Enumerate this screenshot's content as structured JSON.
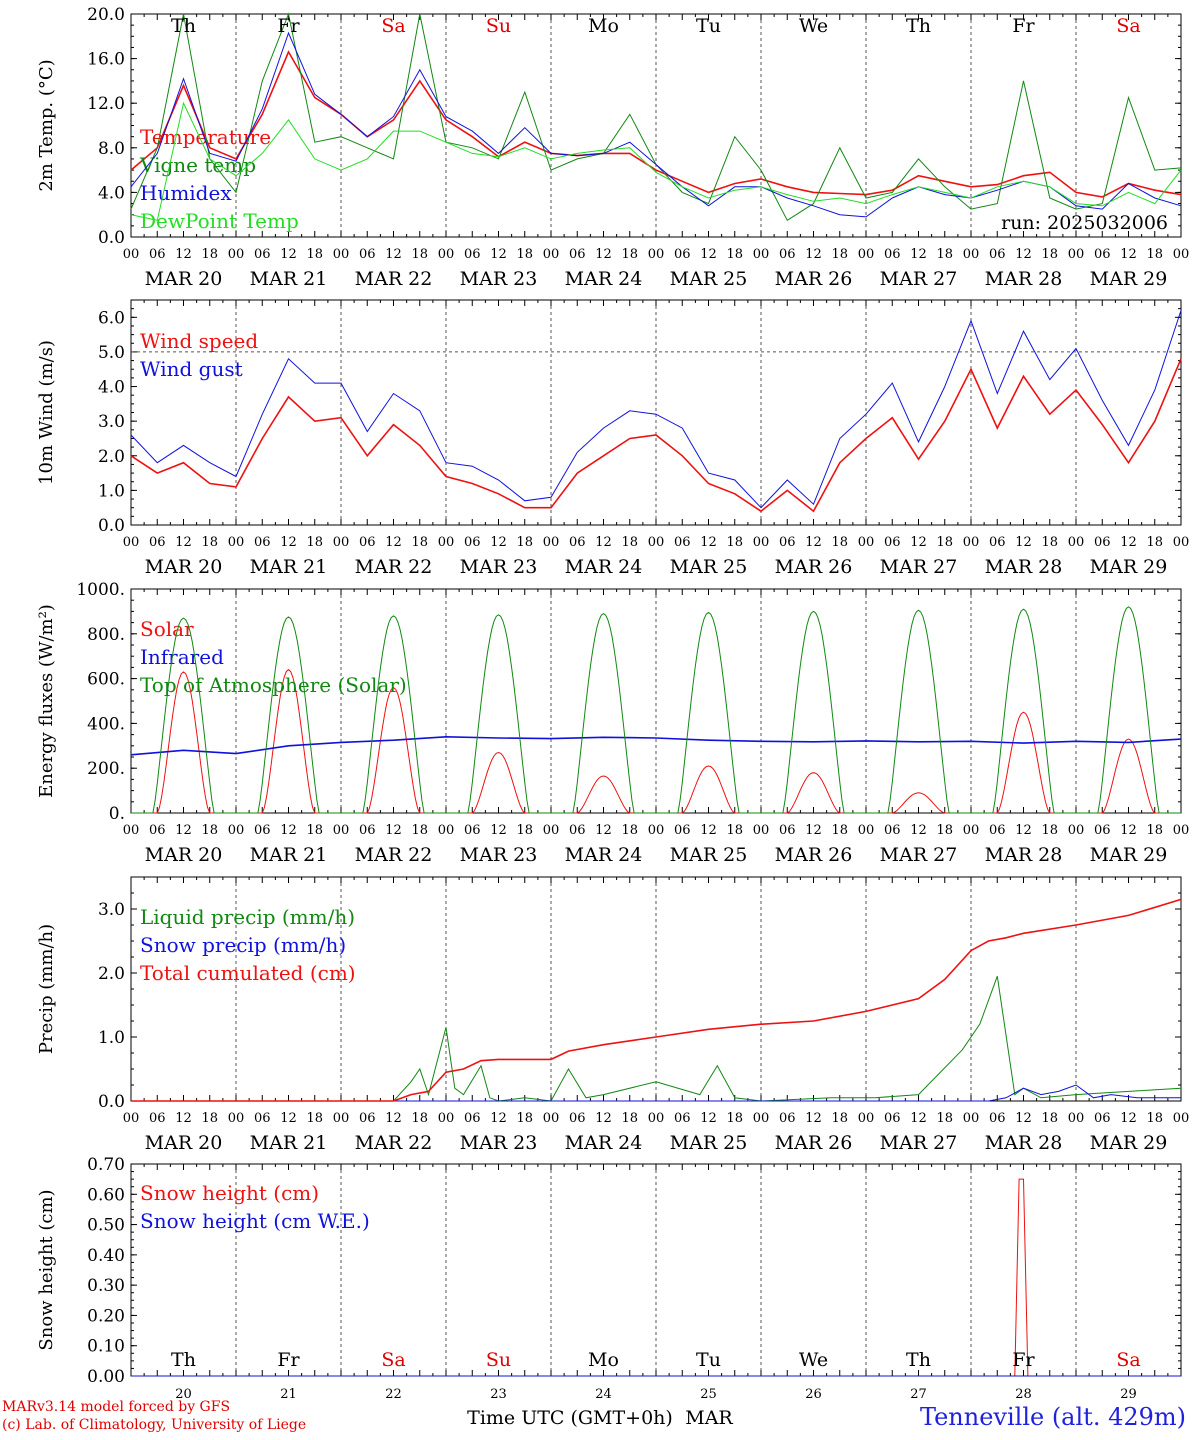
{
  "site": "Tenneville (alt. 429m)",
  "run": "run: 2025032006",
  "credits": [
    "MARv3.14 model forced by GFS",
    "(c) Lab. of Climatology, University of Liege"
  ],
  "xaxis": {
    "title": "Time UTC (GMT+0h)",
    "month": "MAR",
    "hour_ticks": [
      "00",
      "06",
      "12",
      "18"
    ],
    "dates": [
      "MAR 20",
      "MAR 21",
      "MAR 22",
      "MAR 23",
      "MAR 24",
      "MAR 25",
      "MAR 26",
      "MAR 27",
      "MAR 28",
      "MAR 29"
    ],
    "day_numbers": [
      "20",
      "21",
      "22",
      "23",
      "24",
      "25",
      "26",
      "27",
      "28",
      "29"
    ],
    "weekdays": [
      "Th",
      "Fr",
      "Sa",
      "Su",
      "Mo",
      "Tu",
      "We",
      "Th",
      "Fr",
      "Sa"
    ],
    "weekday_colors": [
      "#000000",
      "#000000",
      "#e00000",
      "#e00000",
      "#000000",
      "#000000",
      "#000000",
      "#000000",
      "#000000",
      "#e00000"
    ]
  },
  "colors": {
    "red": "#ee1111",
    "blue": "#1111dd",
    "green": "#118811",
    "lightgreen": "#22dd22",
    "grid": "#555555"
  },
  "chart_data": [
    {
      "type": "line",
      "ylabel": "2m Temp. (°C)",
      "ylim": [
        0,
        20
      ],
      "yticks": [
        "0.0",
        "4.0",
        "8.0",
        "12.0",
        "16.0",
        "20.0"
      ],
      "series": [
        {
          "name": "Temperature",
          "color": "#ee1111",
          "x": [
            0,
            6,
            12,
            18,
            24,
            30,
            36,
            42,
            48,
            54,
            60,
            66,
            72,
            78,
            84,
            90,
            96,
            102,
            108,
            114,
            120,
            126,
            132,
            138,
            144,
            150,
            156,
            162,
            168,
            174,
            180,
            186,
            192,
            198,
            204,
            210,
            216,
            222,
            228,
            234,
            240
          ],
          "y": [
            6.0,
            8.0,
            13.6,
            8.0,
            7.0,
            11.0,
            16.6,
            12.5,
            11.0,
            9.0,
            10.5,
            14.0,
            10.5,
            9.0,
            7.2,
            8.5,
            7.5,
            7.3,
            7.5,
            7.5,
            6.0,
            5.0,
            4.0,
            4.8,
            5.2,
            4.5,
            4.0,
            3.9,
            3.8,
            4.2,
            5.5,
            5.0,
            4.5,
            4.7,
            5.5,
            5.8,
            4.0,
            3.6,
            4.8,
            4.2,
            3.8
          ]
        },
        {
          "name": "Vigne temp",
          "color": "#118811",
          "x": [
            0,
            6,
            12,
            18,
            24,
            30,
            36,
            42,
            48,
            54,
            60,
            66,
            72,
            78,
            84,
            90,
            96,
            102,
            108,
            114,
            120,
            126,
            132,
            138,
            144,
            150,
            156,
            162,
            168,
            174,
            180,
            186,
            192,
            198,
            204,
            210,
            216,
            222,
            228,
            234,
            240
          ],
          "y": [
            2.5,
            8.0,
            20.0,
            7.0,
            4.0,
            14.0,
            20.0,
            8.5,
            9.0,
            8.0,
            7.0,
            20.0,
            8.5,
            8.0,
            7.0,
            13.0,
            6.0,
            7.0,
            7.5,
            11.0,
            6.5,
            4.0,
            3.0,
            9.0,
            6.0,
            1.5,
            3.0,
            8.0,
            3.5,
            4.0,
            7.0,
            4.5,
            2.5,
            3.0,
            14.0,
            3.5,
            2.5,
            3.0,
            12.5,
            6.0,
            6.2
          ]
        },
        {
          "name": "Humidex",
          "color": "#1111dd",
          "x": [
            0,
            6,
            12,
            18,
            24,
            30,
            36,
            42,
            48,
            54,
            60,
            66,
            72,
            78,
            84,
            90,
            96,
            102,
            108,
            114,
            120,
            126,
            132,
            138,
            144,
            150,
            156,
            162,
            168,
            174,
            180,
            186,
            192,
            198,
            204,
            210,
            216,
            222,
            228,
            234,
            240
          ],
          "y": [
            4.5,
            7.5,
            14.2,
            7.5,
            6.8,
            11.5,
            18.3,
            12.8,
            11.0,
            9.0,
            10.8,
            15.0,
            10.8,
            9.5,
            7.5,
            9.8,
            7.5,
            7.3,
            7.5,
            8.5,
            6.5,
            4.5,
            2.8,
            4.5,
            4.5,
            3.5,
            2.8,
            2.0,
            1.8,
            3.5,
            4.5,
            3.8,
            3.5,
            4.2,
            5.0,
            4.5,
            2.8,
            2.5,
            4.8,
            3.5,
            2.8
          ]
        },
        {
          "name": "DewPoint Temp",
          "color": "#22dd22",
          "x": [
            0,
            6,
            12,
            18,
            24,
            30,
            36,
            42,
            48,
            54,
            60,
            66,
            72,
            78,
            84,
            90,
            96,
            102,
            108,
            114,
            120,
            126,
            132,
            138,
            144,
            150,
            156,
            162,
            168,
            174,
            180,
            186,
            192,
            198,
            204,
            210,
            216,
            222,
            228,
            234,
            240
          ],
          "y": [
            2.0,
            1.5,
            12.0,
            7.0,
            5.5,
            7.5,
            10.5,
            7.0,
            6.0,
            7.0,
            9.5,
            9.5,
            8.5,
            7.5,
            7.2,
            8.0,
            7.0,
            7.5,
            7.8,
            8.0,
            5.8,
            4.5,
            3.5,
            4.2,
            4.5,
            3.8,
            3.2,
            3.5,
            3.0,
            3.8,
            4.5,
            4.0,
            3.5,
            4.5,
            5.0,
            4.5,
            3.0,
            2.8,
            4.0,
            3.0,
            6.0
          ]
        }
      ]
    },
    {
      "type": "line",
      "ylabel": "10m Wind (m/s)",
      "ylim": [
        0,
        6.5
      ],
      "yticks": [
        "0.0",
        "1.0",
        "2.0",
        "3.0",
        "4.0",
        "5.0",
        "6.0"
      ],
      "reference_line": 5.0,
      "series": [
        {
          "name": "Wind speed",
          "color": "#ee1111",
          "x": [
            0,
            6,
            12,
            18,
            24,
            30,
            36,
            42,
            48,
            54,
            60,
            66,
            72,
            78,
            84,
            90,
            96,
            102,
            108,
            114,
            120,
            126,
            132,
            138,
            144,
            150,
            156,
            162,
            168,
            174,
            180,
            186,
            192,
            198,
            204,
            210,
            216,
            222,
            228,
            234,
            240
          ],
          "y": [
            2.0,
            1.5,
            1.8,
            1.2,
            1.1,
            2.5,
            3.7,
            3.0,
            3.1,
            2.0,
            2.9,
            2.3,
            1.4,
            1.2,
            0.9,
            0.5,
            0.5,
            1.5,
            2.0,
            2.5,
            2.6,
            2.0,
            1.2,
            0.9,
            0.4,
            1.0,
            0.4,
            1.8,
            2.5,
            3.1,
            1.9,
            3.0,
            4.5,
            2.8,
            4.3,
            3.2,
            3.9,
            2.9,
            1.8,
            3.0,
            4.8
          ]
        },
        {
          "name": "Wind gust",
          "color": "#1111dd",
          "x": [
            0,
            6,
            12,
            18,
            24,
            30,
            36,
            42,
            48,
            54,
            60,
            66,
            72,
            78,
            84,
            90,
            96,
            102,
            108,
            114,
            120,
            126,
            132,
            138,
            144,
            150,
            156,
            162,
            168,
            174,
            180,
            186,
            192,
            198,
            204,
            210,
            216,
            222,
            228,
            234,
            240
          ],
          "y": [
            2.6,
            1.8,
            2.3,
            1.8,
            1.4,
            3.2,
            4.8,
            4.1,
            4.1,
            2.7,
            3.8,
            3.3,
            1.8,
            1.7,
            1.3,
            0.7,
            0.8,
            2.1,
            2.8,
            3.3,
            3.2,
            2.8,
            1.5,
            1.3,
            0.5,
            1.3,
            0.6,
            2.5,
            3.2,
            4.1,
            2.4,
            4.0,
            5.9,
            3.8,
            5.6,
            4.2,
            5.1,
            3.6,
            2.3,
            3.9,
            6.2
          ]
        }
      ]
    },
    {
      "type": "line",
      "ylabel": "Energy fluxes (W/m²)",
      "ylim": [
        0,
        1000
      ],
      "yticks": [
        "0.",
        "200.",
        "400.",
        "600.",
        "800.",
        "1000."
      ],
      "series": [
        {
          "name": "Solar",
          "color": "#ee1111",
          "daily_peaks": [
            630,
            640,
            560,
            270,
            165,
            210,
            180,
            90,
            450,
            330
          ]
        },
        {
          "name": "Infrared",
          "color": "#1111dd",
          "x": [
            0,
            12,
            24,
            36,
            48,
            60,
            72,
            84,
            96,
            108,
            120,
            132,
            144,
            156,
            168,
            180,
            192,
            204,
            216,
            228,
            240
          ],
          "y": [
            260,
            280,
            265,
            300,
            315,
            325,
            340,
            335,
            332,
            338,
            335,
            325,
            320,
            318,
            322,
            318,
            320,
            312,
            320,
            315,
            330
          ]
        },
        {
          "name": "Top of Atmosphere (Solar)",
          "color": "#118811",
          "daily_peaks": [
            870,
            875,
            880,
            885,
            890,
            895,
            900,
            905,
            910,
            920
          ]
        }
      ]
    },
    {
      "type": "line",
      "ylabel": "Precip (mm/h)",
      "ylim": [
        0,
        3.5
      ],
      "yticks": [
        "0.0",
        "1.0",
        "2.0",
        "3.0"
      ],
      "series": [
        {
          "name": "Liquid precip (mm/h)",
          "color": "#118811",
          "x": [
            0,
            60,
            64,
            66,
            68,
            72,
            74,
            76,
            80,
            82,
            84,
            90,
            96,
            100,
            104,
            108,
            120,
            130,
            134,
            138,
            144,
            160,
            170,
            180,
            190,
            194,
            198,
            202,
            204,
            208,
            216,
            228,
            240
          ],
          "y": [
            0,
            0,
            0.3,
            0.5,
            0.1,
            1.15,
            0.2,
            0.1,
            0.55,
            0.05,
            0,
            0.05,
            0,
            0.5,
            0.05,
            0.1,
            0.3,
            0.1,
            0.55,
            0.05,
            0,
            0.05,
            0.05,
            0.1,
            0.8,
            1.2,
            1.95,
            0.1,
            0.2,
            0.05,
            0.1,
            0.15,
            0.2
          ]
        },
        {
          "name": "Snow precip (mm/h)",
          "color": "#1111dd",
          "x": [
            0,
            190,
            196,
            200,
            204,
            208,
            212,
            216,
            220,
            224,
            230,
            240
          ],
          "y": [
            0,
            0,
            0,
            0.05,
            0.2,
            0.1,
            0.15,
            0.25,
            0.05,
            0.1,
            0.05,
            0.05
          ]
        },
        {
          "name": "Total cumulated (cm)",
          "color": "#ee1111",
          "x": [
            0,
            60,
            64,
            68,
            72,
            76,
            80,
            84,
            90,
            96,
            100,
            108,
            120,
            132,
            144,
            156,
            168,
            180,
            186,
            192,
            196,
            200,
            204,
            216,
            228,
            240
          ],
          "y": [
            0,
            0,
            0.1,
            0.15,
            0.45,
            0.5,
            0.63,
            0.65,
            0.65,
            0.65,
            0.78,
            0.88,
            1.0,
            1.12,
            1.2,
            1.25,
            1.4,
            1.6,
            1.9,
            2.35,
            2.5,
            2.55,
            2.62,
            2.75,
            2.9,
            3.15
          ]
        }
      ]
    },
    {
      "type": "line",
      "ylabel": "Snow height (cm)",
      "ylim": [
        0,
        0.7
      ],
      "yticks": [
        "0.00",
        "0.10",
        "0.20",
        "0.30",
        "0.40",
        "0.50",
        "0.60",
        "0.70"
      ],
      "series": [
        {
          "name": "Snow height (cm)",
          "color": "#ee1111",
          "x": [
            0,
            202,
            203,
            204,
            205,
            240
          ],
          "y": [
            0,
            0,
            0.65,
            0.65,
            0,
            0
          ]
        },
        {
          "name": "Snow height (cm W.E.)",
          "color": "#1111dd",
          "x": [
            0,
            240
          ],
          "y": [
            0,
            0
          ]
        }
      ]
    }
  ]
}
